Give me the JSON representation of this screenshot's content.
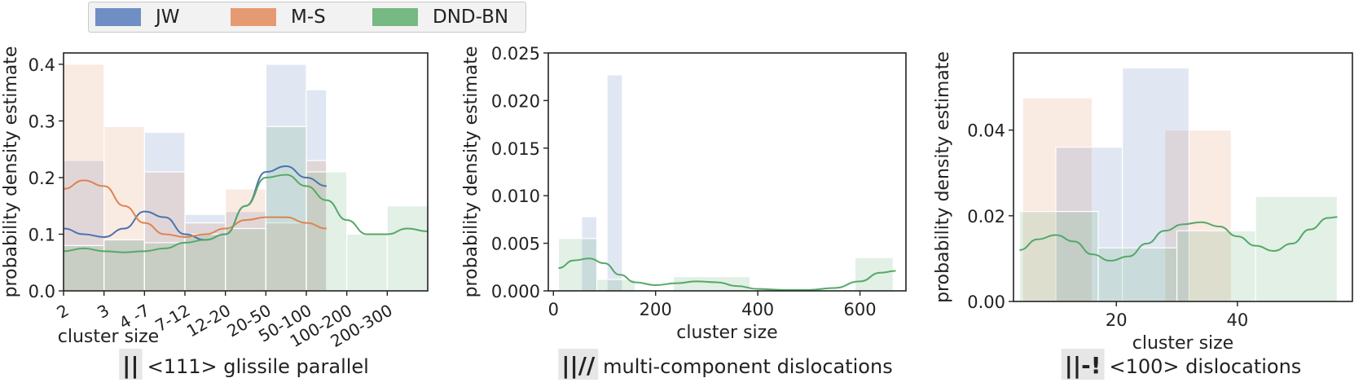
{
  "legend": [
    {
      "name": "JW",
      "color": "#4c72b0"
    },
    {
      "name": "M-S",
      "color": "#dd8452"
    },
    {
      "name": "DND-BN",
      "color": "#55a868"
    }
  ],
  "chart_data": [
    {
      "type": "bar",
      "title": "<111> glissile parallel",
      "title_marker": "||",
      "xlabel": "cluster size",
      "ylabel": "probability density estimate",
      "x_scale": "categorical",
      "categories": [
        "2",
        "3",
        "4 -7",
        "7-12",
        "12-20",
        "20-50",
        "50-100",
        "100-200",
        "200-300"
      ],
      "ylim": [
        0,
        0.42
      ],
      "yticks": [
        "0.0",
        "0.1",
        "0.2",
        "0.3",
        "0.4"
      ],
      "series": [
        {
          "name": "JW",
          "bins": [
            [
              2,
              3,
              0.23
            ],
            [
              3,
              4,
              0.09
            ],
            [
              4,
              5,
              0.28
            ],
            [
              5,
              6,
              0.135
            ],
            [
              6,
              7,
              0.14
            ],
            [
              7,
              8,
              0.4
            ],
            [
              8,
              8.5,
              0.355
            ]
          ],
          "kde": [
            [
              2,
              0.11
            ],
            [
              2.5,
              0.1
            ],
            [
              3,
              0.095
            ],
            [
              3.5,
              0.11
            ],
            [
              4,
              0.14
            ],
            [
              4.5,
              0.13
            ],
            [
              5,
              0.1
            ],
            [
              5.5,
              0.09
            ],
            [
              6,
              0.1
            ],
            [
              6.5,
              0.15
            ],
            [
              7,
              0.21
            ],
            [
              7.5,
              0.22
            ],
            [
              8,
              0.2
            ],
            [
              8.5,
              0.185
            ]
          ]
        },
        {
          "name": "M-S",
          "bins": [
            [
              2,
              3,
              0.4
            ],
            [
              3,
              4,
              0.29
            ],
            [
              4,
              5,
              0.21
            ],
            [
              5,
              6,
              0.12
            ],
            [
              6,
              7,
              0.18
            ],
            [
              7,
              8,
              0.12
            ],
            [
              8,
              8.5,
              0.23
            ]
          ],
          "kde": [
            [
              2,
              0.18
            ],
            [
              2.5,
              0.195
            ],
            [
              3,
              0.185
            ],
            [
              3.5,
              0.15
            ],
            [
              4,
              0.12
            ],
            [
              4.5,
              0.1
            ],
            [
              5,
              0.095
            ],
            [
              5.5,
              0.1
            ],
            [
              6,
              0.11
            ],
            [
              6.5,
              0.125
            ],
            [
              7,
              0.13
            ],
            [
              7.5,
              0.13
            ],
            [
              8,
              0.12
            ],
            [
              8.5,
              0.11
            ]
          ]
        },
        {
          "name": "DND-BN",
          "bins": [
            [
              2,
              3,
              0.08
            ],
            [
              3,
              4,
              0.09
            ],
            [
              4,
              5,
              0.085
            ],
            [
              5,
              6,
              0.1
            ],
            [
              6,
              7,
              0.11
            ],
            [
              7,
              8,
              0.29
            ],
            [
              8,
              9,
              0.21
            ],
            [
              9,
              10,
              0.1
            ],
            [
              10,
              11,
              0.15
            ]
          ],
          "kde": [
            [
              2,
              0.07
            ],
            [
              2.5,
              0.075
            ],
            [
              3,
              0.07
            ],
            [
              3.5,
              0.068
            ],
            [
              4,
              0.07
            ],
            [
              4.5,
              0.075
            ],
            [
              5,
              0.085
            ],
            [
              5.5,
              0.09
            ],
            [
              6,
              0.1
            ],
            [
              6.5,
              0.15
            ],
            [
              7,
              0.2
            ],
            [
              7.5,
              0.205
            ],
            [
              8,
              0.185
            ],
            [
              8.5,
              0.16
            ],
            [
              9,
              0.125
            ],
            [
              9.5,
              0.1
            ],
            [
              10,
              0.1
            ],
            [
              10.5,
              0.11
            ],
            [
              11,
              0.105
            ]
          ]
        }
      ]
    },
    {
      "type": "bar",
      "title": "multi-component dislocations",
      "title_marker": "||//",
      "xlabel": "cluster size",
      "ylabel": "probability density estimate",
      "xlim": [
        -10,
        690
      ],
      "xticks": [
        "0",
        "200",
        "400",
        "600"
      ],
      "ylim": [
        0,
        0.025
      ],
      "yticks": [
        "0.000",
        "0.005",
        "0.010",
        "0.015",
        "0.020",
        "0.025"
      ],
      "series": [
        {
          "name": "JW",
          "bins": [
            [
              55,
              85,
              0.0078
            ],
            [
              105,
              135,
              0.0227
            ]
          ]
        },
        {
          "name": "DND-BN",
          "bins": [
            [
              10,
              85,
              0.0055
            ],
            [
              85,
              160,
              0.0012
            ],
            [
              235,
              385,
              0.0015
            ],
            [
              590,
              665,
              0.0035
            ]
          ],
          "kde": [
            [
              10,
              0.0024
            ],
            [
              40,
              0.0032
            ],
            [
              70,
              0.0034
            ],
            [
              100,
              0.0029
            ],
            [
              130,
              0.0017
            ],
            [
              160,
              0.0009
            ],
            [
              200,
              0.0006
            ],
            [
              240,
              0.0008
            ],
            [
              280,
              0.001
            ],
            [
              320,
              0.0009
            ],
            [
              360,
              0.0005
            ],
            [
              400,
              0.0002
            ],
            [
              450,
              0.0001
            ],
            [
              500,
              0.0001
            ],
            [
              550,
              0.0003
            ],
            [
              600,
              0.001
            ],
            [
              640,
              0.0019
            ],
            [
              670,
              0.0021
            ]
          ]
        }
      ]
    },
    {
      "type": "bar",
      "title": "<100> dislocations",
      "title_marker": "||-!",
      "xlabel": "cluster size",
      "ylabel": "probability density estimate",
      "xlim": [
        3,
        59
      ],
      "xticks": [
        "20",
        "40"
      ],
      "ylim": [
        0,
        0.058
      ],
      "yticks": [
        "0.00",
        "0.02",
        "0.04"
      ],
      "series": [
        {
          "name": "M-S",
          "bins": [
            [
              4.5,
              16,
              0.0475
            ],
            [
              28,
              39,
              0.04
            ]
          ]
        },
        {
          "name": "JW",
          "bins": [
            [
              10,
              21,
              0.036
            ],
            [
              21,
              32,
              0.0545
            ]
          ]
        },
        {
          "name": "DND-BN",
          "bins": [
            [
              4,
              17,
              0.021
            ],
            [
              17,
              30,
              0.0125
            ],
            [
              30,
              43,
              0.0165
            ],
            [
              43,
              56.5,
              0.0245
            ]
          ],
          "kde": [
            [
              4,
              0.012
            ],
            [
              7,
              0.0145
            ],
            [
              10,
              0.0155
            ],
            [
              13,
              0.014
            ],
            [
              16,
              0.011
            ],
            [
              19,
              0.0095
            ],
            [
              22,
              0.0105
            ],
            [
              25,
              0.0135
            ],
            [
              28,
              0.0165
            ],
            [
              31,
              0.018
            ],
            [
              34,
              0.0185
            ],
            [
              37,
              0.0175
            ],
            [
              40,
              0.0152
            ],
            [
              43,
              0.013
            ],
            [
              46,
              0.0118
            ],
            [
              49,
              0.0135
            ],
            [
              52,
              0.0168
            ],
            [
              55,
              0.0195
            ],
            [
              56.5,
              0.0197
            ]
          ]
        }
      ]
    }
  ]
}
